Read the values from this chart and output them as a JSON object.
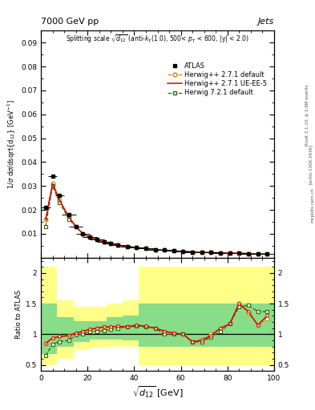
{
  "title_top": "7000 GeV pp",
  "title_right": "Jets",
  "plot_title": "Splitting scale $\\sqrt{d_{12}}$ (anti-$k_{T}$(1.0), 500< $p_{T}$ < 600, |y| < 2.0)",
  "xlabel": "$\\mathrm{sqrt}(d_{12})$ [GeV]",
  "ylabel_main": "1/$\\sigma$ d$\\sigma$/dsqrt($d_{12}$) [GeV$^{-1}$]",
  "ylabel_ratio": "Ratio to ATLAS",
  "xlim": [
    0,
    100
  ],
  "ylim_main": [
    0.0,
    0.095
  ],
  "ylim_ratio": [
    0.4,
    2.25
  ],
  "yticks_main": [
    0.01,
    0.02,
    0.03,
    0.04,
    0.05,
    0.06,
    0.07,
    0.08,
    0.09
  ],
  "yticks_ratio": [
    0.5,
    1.0,
    1.5,
    2.0
  ],
  "atlas_x": [
    2,
    5,
    8,
    12,
    15,
    18,
    21,
    24,
    27,
    30,
    33,
    37,
    41,
    45,
    49,
    53,
    57,
    61,
    65,
    69,
    73,
    77,
    81,
    85,
    89,
    93,
    97
  ],
  "atlas_y": [
    0.021,
    0.034,
    0.026,
    0.018,
    0.013,
    0.01,
    0.0085,
    0.0075,
    0.0065,
    0.0058,
    0.0052,
    0.0047,
    0.0042,
    0.0038,
    0.0034,
    0.0031,
    0.0028,
    0.0026,
    0.0024,
    0.0022,
    0.0021,
    0.002,
    0.0019,
    0.0018,
    0.0017,
    0.0016,
    0.0015
  ],
  "atlas_xerr": [
    2,
    2,
    2,
    3,
    3,
    3,
    3,
    3,
    3,
    3,
    3,
    3,
    4,
    4,
    4,
    4,
    4,
    4,
    4,
    4,
    4,
    4,
    4,
    4,
    4,
    4,
    3
  ],
  "herwig_def_y": [
    0.016,
    0.031,
    0.024,
    0.017,
    0.013,
    0.01,
    0.0085,
    0.0075,
    0.0065,
    0.0058,
    0.0052,
    0.0047,
    0.0042,
    0.0038,
    0.0034,
    0.0031,
    0.0028,
    0.0026,
    0.0024,
    0.0022,
    0.0021,
    0.002,
    0.0019,
    0.0018,
    0.0017,
    0.0016,
    0.0015
  ],
  "herwig_ueee5_y": [
    0.016,
    0.031,
    0.024,
    0.017,
    0.013,
    0.01,
    0.0085,
    0.0075,
    0.0065,
    0.0058,
    0.0052,
    0.0047,
    0.0042,
    0.0038,
    0.0034,
    0.0031,
    0.0028,
    0.0026,
    0.0024,
    0.0022,
    0.0021,
    0.002,
    0.0019,
    0.0018,
    0.0017,
    0.0016,
    0.0015
  ],
  "herwig721_y": [
    0.013,
    0.03,
    0.023,
    0.016,
    0.013,
    0.01,
    0.0085,
    0.0075,
    0.0065,
    0.0058,
    0.0052,
    0.0047,
    0.0042,
    0.0038,
    0.0034,
    0.0031,
    0.0028,
    0.0026,
    0.0024,
    0.0022,
    0.0021,
    0.002,
    0.0019,
    0.0018,
    0.0017,
    0.0016,
    0.0015
  ],
  "ratio_herwig_def_y": [
    0.85,
    0.94,
    0.96,
    0.98,
    1.02,
    1.05,
    1.08,
    1.1,
    1.12,
    1.12,
    1.13,
    1.12,
    1.15,
    1.13,
    1.1,
    1.05,
    1.02,
    1.0,
    0.88,
    0.92,
    1.0,
    1.1,
    1.17,
    1.5,
    1.35,
    1.15,
    1.25
  ],
  "ratio_herwig_ueee5_y": [
    0.85,
    0.94,
    0.96,
    0.98,
    1.02,
    1.05,
    1.08,
    1.1,
    1.12,
    1.12,
    1.13,
    1.12,
    1.15,
    1.13,
    1.1,
    1.05,
    1.02,
    1.0,
    0.88,
    0.9,
    0.98,
    1.1,
    1.17,
    1.5,
    1.37,
    1.15,
    1.3
  ],
  "ratio_herwig721_y": [
    0.65,
    0.84,
    0.88,
    0.9,
    0.99,
    1.0,
    1.05,
    1.05,
    1.06,
    1.08,
    1.1,
    1.12,
    1.13,
    1.12,
    1.1,
    1.0,
    1.0,
    1.0,
    0.87,
    0.88,
    0.95,
    1.05,
    1.17,
    1.45,
    1.47,
    1.37,
    1.37
  ],
  "bin_edges": [
    0,
    7,
    14,
    21,
    28,
    35,
    42,
    49,
    56,
    63,
    70,
    77,
    84,
    91,
    100
  ],
  "yellow_lo": [
    0.5,
    0.6,
    0.75,
    0.78,
    0.8,
    0.8,
    0.5,
    0.5,
    0.5,
    0.5,
    0.5,
    0.5,
    0.5,
    0.5
  ],
  "yellow_hi": [
    2.1,
    1.55,
    1.45,
    1.45,
    1.5,
    1.55,
    2.1,
    2.1,
    2.1,
    2.1,
    2.1,
    2.1,
    2.1,
    2.1
  ],
  "green_lo": [
    0.68,
    0.8,
    0.88,
    0.92,
    0.92,
    0.9,
    0.8,
    0.8,
    0.8,
    0.8,
    0.8,
    0.8,
    0.8,
    0.8
  ],
  "green_hi": [
    1.5,
    1.28,
    1.22,
    1.22,
    1.28,
    1.3,
    1.5,
    1.5,
    1.5,
    1.5,
    1.5,
    1.5,
    1.5,
    1.5
  ],
  "color_atlas": "#000000",
  "color_herwig_def": "#cc8800",
  "color_herwig_ueee5": "#dd0000",
  "color_herwig721": "#336600",
  "color_yellow": "#ffff88",
  "color_green": "#88dd88",
  "bg_color": "#ffffff"
}
